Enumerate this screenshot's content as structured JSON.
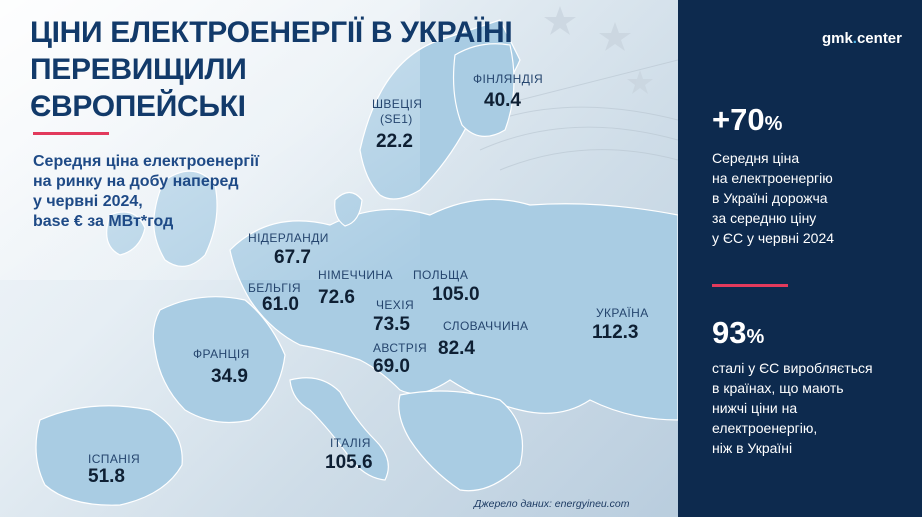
{
  "brand": {
    "name": "gmk",
    "dot": ".",
    "suffix": "center"
  },
  "headline": {
    "line1": "ЦІНИ ЕЛЕКТРОЕНЕРГІЇ В УКРАЇНІ",
    "line2": "ПЕРЕВИЩИЛИ",
    "line3": "ЄВРОПЕЙСЬКІ"
  },
  "subtitle": {
    "line1": "Середня ціна електроенергії",
    "line2": "на ринку на добу наперед",
    "line3": "у червні 2024,",
    "line4": "base € за МВт*год"
  },
  "countries": {
    "finland": {
      "label": "ФІНЛЯНДІЯ",
      "value": "40.4"
    },
    "sweden": {
      "label": "ШВЕЦІЯ",
      "label2": "(SE1)",
      "value": "22.2"
    },
    "netherlands": {
      "label": "НІДЕРЛАНДИ",
      "value": "67.7"
    },
    "germany": {
      "label": "НІМЕЧЧИНА",
      "value": "72.6"
    },
    "poland": {
      "label": "ПОЛЬЩА",
      "value": "105.0"
    },
    "belgium": {
      "label": "БЕЛЬГІЯ",
      "value": "61.0"
    },
    "czechia": {
      "label": "ЧЕХІЯ",
      "value": "73.5"
    },
    "slovakia": {
      "label": "СЛОВАЧЧИНА",
      "value": "82.4"
    },
    "ukraine": {
      "label": "УКРАЇНА",
      "value": "112.3"
    },
    "austria": {
      "label": "АВСТРІЯ",
      "value": "69.0"
    },
    "france": {
      "label": "ФРАНЦІЯ",
      "value": "34.9"
    },
    "italy": {
      "label": "ІТАЛІЯ",
      "value": "105.6"
    },
    "spain": {
      "label": "ІСПАНІЯ",
      "value": "51.8"
    }
  },
  "stats": {
    "first": {
      "number": "+70",
      "unit": "%",
      "lines": [
        "Середня ціна",
        "на електроенергію",
        "в Україні дорожча",
        "за середню ціну",
        "у ЄС у червні 2024"
      ]
    },
    "second": {
      "number": "93",
      "unit": "%",
      "lines": [
        "сталі у ЄС виробляється",
        "в країнах, що мають",
        "нижчі ціни на",
        "електроенергію,",
        "ніж в Україні"
      ]
    }
  },
  "source": "Джерело даних: energyineu.com",
  "colors": {
    "panel": "#0d2a4e",
    "accent_line": "#e23a5c",
    "title": "#123a6a",
    "map_land": "#a9cce3"
  }
}
